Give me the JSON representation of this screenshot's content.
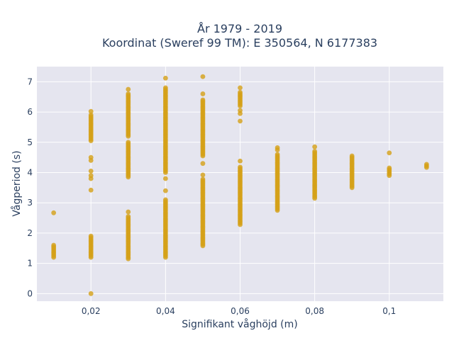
{
  "chart_data": {
    "type": "scatter",
    "title_line1": "År 1979 - 2019",
    "title_line2": "Koordinat (Sweref 99 TM): E 350564, N 6177383",
    "xlabel": "Signifikant våghöjd (m)",
    "ylabel": "Vågperiod (s)",
    "xlim": [
      0.0055,
      0.1145
    ],
    "ylim": [
      -0.25,
      7.5
    ],
    "x_ticks": [
      {
        "value": 0.02,
        "label": "0,02"
      },
      {
        "value": 0.04,
        "label": "0,04"
      },
      {
        "value": 0.06,
        "label": "0,06"
      },
      {
        "value": 0.08,
        "label": "0,08"
      },
      {
        "value": 0.1,
        "label": "0,1"
      }
    ],
    "y_ticks": [
      {
        "value": 0,
        "label": "0"
      },
      {
        "value": 1,
        "label": "1"
      },
      {
        "value": 2,
        "label": "2"
      },
      {
        "value": 3,
        "label": "3"
      },
      {
        "value": 4,
        "label": "4"
      },
      {
        "value": 5,
        "label": "5"
      },
      {
        "value": 6,
        "label": "6"
      },
      {
        "value": 7,
        "label": "7"
      }
    ],
    "grid": true,
    "marker_color": "#d4a017",
    "plot_bg": "#e5e5ef",
    "columns": [
      {
        "x": 0.01,
        "ranges": [
          [
            1.2,
            1.6
          ]
        ],
        "points": [
          2.67
        ]
      },
      {
        "x": 0.02,
        "ranges": [
          [
            1.2,
            1.9
          ],
          [
            5.05,
            5.9
          ]
        ],
        "points": [
          0.0,
          3.42,
          3.8,
          3.9,
          4.05,
          4.4,
          4.5,
          6.02
        ]
      },
      {
        "x": 0.03,
        "ranges": [
          [
            1.15,
            2.55
          ],
          [
            3.85,
            5.0
          ],
          [
            5.2,
            6.6
          ]
        ],
        "points": [
          2.7,
          6.75
        ]
      },
      {
        "x": 0.04,
        "ranges": [
          [
            1.2,
            3.1
          ],
          [
            4.0,
            6.8
          ]
        ],
        "points": [
          3.4,
          3.8,
          7.12
        ]
      },
      {
        "x": 0.05,
        "ranges": [
          [
            1.58,
            3.8
          ],
          [
            4.55,
            6.4
          ]
        ],
        "points": [
          3.92,
          4.3,
          6.6,
          7.17
        ]
      },
      {
        "x": 0.06,
        "ranges": [
          [
            2.28,
            4.2
          ],
          [
            6.2,
            6.65
          ]
        ],
        "points": [
          4.38,
          5.7,
          5.95,
          6.05,
          6.8
        ]
      },
      {
        "x": 0.07,
        "ranges": [
          [
            2.75,
            4.6
          ]
        ],
        "points": [
          4.75,
          4.82
        ]
      },
      {
        "x": 0.08,
        "ranges": [
          [
            3.15,
            4.7
          ]
        ],
        "points": [
          4.85
        ]
      },
      {
        "x": 0.09,
        "ranges": [
          [
            3.5,
            4.55
          ]
        ],
        "points": []
      },
      {
        "x": 0.1,
        "ranges": [
          [
            3.9,
            4.15
          ]
        ],
        "points": [
          4.65
        ]
      },
      {
        "x": 0.11,
        "ranges": [
          [
            4.17,
            4.28
          ]
        ],
        "points": []
      }
    ]
  }
}
